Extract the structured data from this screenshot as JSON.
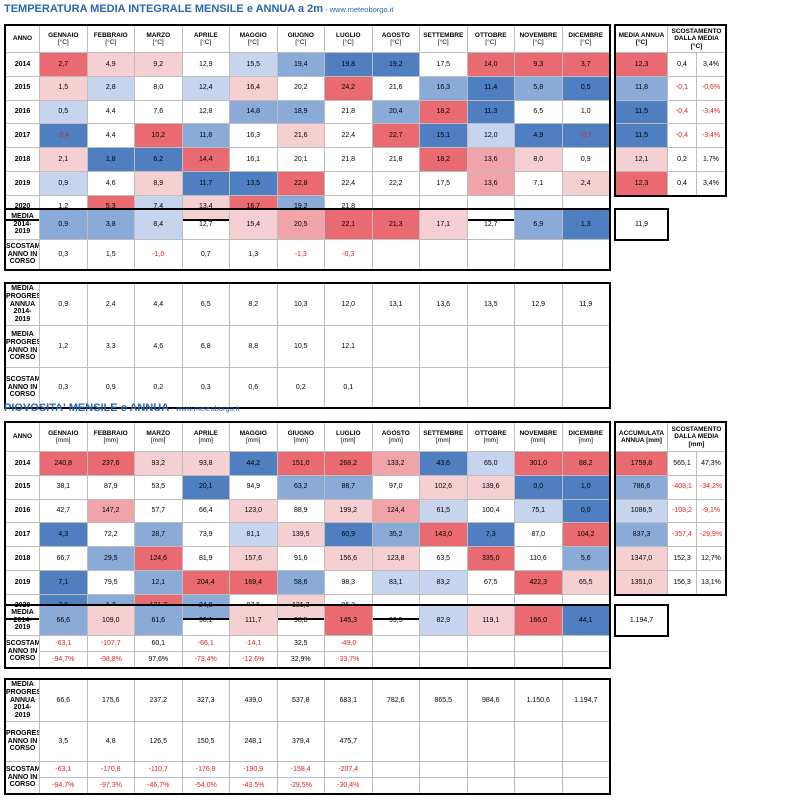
{
  "months": [
    "GENNAIO",
    "FEBBRAIO",
    "MARZO",
    "APRILE",
    "MAGGIO",
    "GIUGNO",
    "LUGLIO",
    "AGOSTO",
    "SETTEMBRE",
    "OTTOBRE",
    "NOVEMBRE",
    "DICEMBRE"
  ],
  "colors": {
    "dark_blue": "#4f7fc1",
    "mid_blue": "#8aaad8",
    "light_blue": "#c6d4ed",
    "pale_red": "#f6cfd2",
    "mid_red": "#f0a3a9",
    "red": "#ea6a71",
    "negative_text": "#e02020"
  },
  "temperature": {
    "title": "TEMPERATURA MEDIA INTEGRALE MENSILE e ANNUA a 2m",
    "site": " - www.meteoborgo.it",
    "header": {
      "year": "ANNO",
      "unit": "[°C]",
      "annual": "MEDIA ANNUA [°C]",
      "deviation": "SCOSTAMENTO DALLA MEDIA [°C]"
    },
    "rows": [
      {
        "year": "2014",
        "values": [
          "2,7",
          "4,9",
          "9,2",
          "12,9",
          "15,5",
          "19,4",
          "19,8",
          "19,2",
          "17,5",
          "14,0",
          "9,3",
          "3,7"
        ],
        "colors": [
          "red",
          "pale_red",
          "pale_red",
          "",
          "light_blue",
          "mid_blue",
          "dark_blue",
          "dark_blue",
          "",
          "red",
          "red",
          "red"
        ],
        "annual": "12,3",
        "annual_color": "red",
        "dev": [
          "0,4",
          "3,4%"
        ]
      },
      {
        "year": "2015",
        "values": [
          "1,5",
          "2,8",
          "8,0",
          "12,4",
          "16,4",
          "20,2",
          "24,2",
          "21,6",
          "16,3",
          "11,4",
          "5,8",
          "0,5"
        ],
        "colors": [
          "pale_red",
          "light_blue",
          "",
          "light_blue",
          "pale_red",
          "",
          "red",
          "",
          "mid_blue",
          "dark_blue",
          "mid_blue",
          "dark_blue"
        ],
        "annual": "11,8",
        "annual_color": "mid_blue",
        "dev": [
          "-0,1",
          "-0,6%"
        ]
      },
      {
        "year": "2016",
        "values": [
          "0,5",
          "4,4",
          "7,6",
          "12,8",
          "14,8",
          "18,9",
          "21,8",
          "20,4",
          "18,2",
          "11,3",
          "6,5",
          "1,0"
        ],
        "colors": [
          "light_blue",
          "",
          "",
          "",
          "mid_blue",
          "mid_blue",
          "",
          "mid_blue",
          "red",
          "dark_blue",
          "",
          ""
        ],
        "annual": "11,5",
        "annual_color": "dark_blue",
        "dev": [
          "-0,4",
          "-3,4%"
        ]
      },
      {
        "year": "2017",
        "values": [
          "-2,4",
          "4,4",
          "10,2",
          "11,8",
          "16,3",
          "21,6",
          "22,4",
          "22,7",
          "15,1",
          "12,0",
          "4,9",
          "-0,7"
        ],
        "colors": [
          "dark_blue",
          "",
          "red",
          "mid_blue",
          "",
          "pale_red",
          "",
          "red",
          "dark_blue",
          "light_blue",
          "dark_blue",
          "dark_blue"
        ],
        "annual": "11,5",
        "annual_color": "dark_blue",
        "dev": [
          "-0,4",
          "-3,4%"
        ]
      },
      {
        "year": "2018",
        "values": [
          "2,1",
          "1,8",
          "6,2",
          "14,4",
          "16,1",
          "20,1",
          "21,8",
          "21,8",
          "18,2",
          "13,6",
          "8,0",
          "0,9"
        ],
        "colors": [
          "pale_red",
          "dark_blue",
          "dark_blue",
          "red",
          "",
          "",
          "",
          "",
          "red",
          "mid_red",
          "pale_red",
          ""
        ],
        "annual": "12,1",
        "annual_color": "pale_red",
        "dev": [
          "0,2",
          "1,7%"
        ]
      },
      {
        "year": "2019",
        "values": [
          "0,9",
          "4,6",
          "8,9",
          "11,7",
          "13,5",
          "22,8",
          "22,4",
          "22,2",
          "17,5",
          "13,6",
          "7,1",
          "2,4"
        ],
        "colors": [
          "light_blue",
          "",
          "pale_red",
          "dark_blue",
          "dark_blue",
          "red",
          "",
          "",
          "",
          "mid_red",
          "",
          "pale_red"
        ],
        "annual": "12,3",
        "annual_color": "red",
        "dev": [
          "0,4",
          "3,4%"
        ]
      },
      {
        "year": "2020",
        "values": [
          "1,2",
          "5,3",
          "7,4",
          "13,4",
          "16,7",
          "19,2",
          "21,8",
          "",
          "",
          "",
          "",
          ""
        ],
        "colors": [
          "",
          "red",
          "light_blue",
          "pale_red",
          "red",
          "mid_blue",
          "",
          "",
          "",
          "",
          "",
          ""
        ]
      }
    ],
    "mean": {
      "label": "MEDIA 2014-2019",
      "values": [
        "0,9",
        "3,8",
        "8,4",
        "12,7",
        "15,4",
        "20,5",
        "22,1",
        "21,3",
        "17,1",
        "12,7",
        "6,9",
        "1,3"
      ],
      "colors": [
        "mid_blue",
        "mid_blue",
        "light_blue",
        "",
        "pale_red",
        "mid_red",
        "red",
        "red",
        "pale_red",
        "",
        "mid_blue",
        "dark_blue"
      ],
      "annual": "11,9"
    },
    "deviation": {
      "label": "SCOSTAMENTO ANNO IN CORSO",
      "values": [
        "0,3",
        "1,5",
        "-1,0",
        "0,7",
        "1,3",
        "-1,3",
        "-0,3",
        "",
        "",
        "",
        "",
        ""
      ]
    },
    "progressive": [
      {
        "label": "MEDIA PROGRESSIVA ANNUA 2014-2019",
        "values": [
          "0,9",
          "2,4",
          "4,4",
          "6,5",
          "8,2",
          "10,3",
          "12,0",
          "13,1",
          "13,6",
          "13,5",
          "12,9",
          "11,9"
        ]
      },
      {
        "label": "MEDIA PROGRESSIVA ANNO IN CORSO",
        "values": [
          "1,2",
          "3,3",
          "4,6",
          "6,8",
          "8,8",
          "10,5",
          "12,1",
          "",
          "",
          "",
          "",
          ""
        ]
      },
      {
        "label": "SCOSTAMENTO ANNO IN CORSO",
        "values": [
          "0,3",
          "0,9",
          "0,2",
          "0,3",
          "0,6",
          "0,2",
          "0,1",
          "",
          "",
          "",
          "",
          ""
        ]
      }
    ]
  },
  "rain": {
    "title": "PIOVOSITA' MENSILE e ANNUA",
    "site": " - www.meteoborgo.it",
    "header": {
      "year": "ANNO",
      "unit": "[mm]",
      "annual": "ACCUMULATA ANNUA [mm]",
      "deviation": "SCOSTAMENTO DALLA MEDIA [mm]"
    },
    "rows": [
      {
        "year": "2014",
        "values": [
          "240,8",
          "237,6",
          "93,2",
          "93,8",
          "44,2",
          "151,0",
          "268,2",
          "133,2",
          "43,6",
          "65,0",
          "301,0",
          "88,2"
        ],
        "colors": [
          "red",
          "red",
          "pale_red",
          "pale_red",
          "dark_blue",
          "red",
          "red",
          "mid_red",
          "dark_blue",
          "light_blue",
          "red",
          "red"
        ],
        "annual": "1759,8",
        "annual_color": "red",
        "dev": [
          "565,1",
          "47,3%"
        ]
      },
      {
        "year": "2015",
        "values": [
          "38,1",
          "87,9",
          "53,5",
          "20,1",
          "94,9",
          "63,2",
          "88,7",
          "97,0",
          "102,6",
          "139,6",
          "0,0",
          "1,0"
        ],
        "colors": [
          "",
          "",
          "",
          "dark_blue",
          "",
          "mid_blue",
          "mid_blue",
          "",
          "pale_red",
          "pale_red",
          "dark_blue",
          "dark_blue"
        ],
        "annual": "786,6",
        "annual_color": "mid_blue",
        "dev": [
          "-408,1",
          "-34,2%"
        ]
      },
      {
        "year": "2016",
        "values": [
          "42,7",
          "147,2",
          "57,7",
          "66,4",
          "123,0",
          "88,9",
          "199,2",
          "124,4",
          "61,5",
          "100,4",
          "75,1",
          "0,0"
        ],
        "colors": [
          "",
          "mid_red",
          "",
          "",
          "pale_red",
          "",
          "pale_red",
          "mid_red",
          "light_blue",
          "",
          "light_blue",
          "dark_blue"
        ],
        "annual": "1086,5",
        "annual_color": "light_blue",
        "dev": [
          "-108,2",
          "-9,1%"
        ]
      },
      {
        "year": "2017",
        "values": [
          "4,3",
          "72,2",
          "28,7",
          "73,9",
          "81,1",
          "139,5",
          "60,9",
          "35,2",
          "143,0",
          "7,3",
          "87,0",
          "104,2"
        ],
        "colors": [
          "dark_blue",
          "",
          "mid_blue",
          "",
          "light_blue",
          "pale_red",
          "dark_blue",
          "mid_blue",
          "red",
          "dark_blue",
          "",
          "red"
        ],
        "annual": "837,3",
        "annual_color": "mid_blue",
        "dev": [
          "-357,4",
          "-29,9%"
        ]
      },
      {
        "year": "2018",
        "values": [
          "66,7",
          "29,5",
          "124,6",
          "81,9",
          "157,6",
          "91,6",
          "156,6",
          "123,8",
          "63,5",
          "335,0",
          "110,6",
          "5,6"
        ],
        "colors": [
          "",
          "mid_blue",
          "red",
          "",
          "pale_red",
          "",
          "pale_red",
          "pale_red",
          "",
          "red",
          "",
          "mid_blue"
        ],
        "annual": "1347,0",
        "annual_color": "pale_red",
        "dev": [
          "152,3",
          "12,7%"
        ]
      },
      {
        "year": "2019",
        "values": [
          "7,1",
          "79,5",
          "12,1",
          "204,4",
          "169,4",
          "58,6",
          "98,3",
          "83,1",
          "83,2",
          "67,5",
          "422,3",
          "65,5"
        ],
        "colors": [
          "dark_blue",
          "",
          "mid_blue",
          "red",
          "red",
          "mid_blue",
          "",
          "light_blue",
          "light_blue",
          "",
          "red",
          "pale_red"
        ],
        "annual": "1351,0",
        "annual_color": "pale_red",
        "dev": [
          "156,3",
          "13,1%"
        ]
      },
      {
        "year": "2020",
        "values": [
          "3,5",
          "1,3",
          "121,7",
          "24,0",
          "97,6",
          "131,3",
          "96,3",
          "",
          "",
          "",
          "",
          ""
        ],
        "colors": [
          "dark_blue",
          "mid_blue",
          "red",
          "mid_blue",
          "",
          "pale_red",
          "",
          "",
          "",
          "",
          "",
          ""
        ]
      }
    ],
    "mean": {
      "label": "MEDIA 2014-2019",
      "values": [
        "66,6",
        "109,0",
        "61,6",
        "90,1",
        "111,7",
        "98,8",
        "145,3",
        "99,5",
        "82,9",
        "119,1",
        "166,0",
        "44,1"
      ],
      "colors": [
        "mid_blue",
        "pale_red",
        "mid_blue",
        "",
        "pale_red",
        "",
        "red",
        "",
        "light_blue",
        "pale_red",
        "red",
        "dark_blue"
      ],
      "annual": "1.194,7"
    },
    "deviation": {
      "label": "SCOSTAMENTO ANNO IN CORSO",
      "values": [
        "-63,1",
        "-107,7",
        "60,1",
        "-66,1",
        "-14,1",
        "32,5",
        "-49,0",
        "",
        "",
        "",
        "",
        ""
      ],
      "pct": [
        "-94,7%",
        "-98,8%",
        "97,6%",
        "-73,4%",
        "-12,6%",
        "32,9%",
        "-33,7%",
        "",
        "",
        "",
        "",
        ""
      ]
    },
    "progressive": [
      {
        "label": "MEDIA PROGRESSIVA ANNUA 2014-2019",
        "values": [
          "66,6",
          "175,6",
          "237,2",
          "327,3",
          "439,0",
          "537,8",
          "683,1",
          "782,6",
          "865,5",
          "984,6",
          "1.150,6",
          "1.194,7"
        ]
      },
      {
        "label": "PROGRESSIVA ANNO IN CORSO",
        "values": [
          "3,5",
          "4,8",
          "126,5",
          "150,5",
          "248,1",
          "379,4",
          "475,7",
          "",
          "",
          "",
          "",
          ""
        ]
      },
      {
        "label": "SCOSTAMENTO ANNO IN CORSO",
        "values": [
          "-63,1",
          "-170,8",
          "-110,7",
          "-176,8",
          "-190,9",
          "-158,4",
          "-207,4",
          "",
          "",
          "",
          "",
          ""
        ],
        "pct": [
          "-94,7%",
          "-97,3%",
          "-46,7%",
          "-54,0%",
          "-43,5%",
          "-29,5%",
          "-30,4%",
          "",
          "",
          "",
          "",
          ""
        ]
      }
    ]
  }
}
